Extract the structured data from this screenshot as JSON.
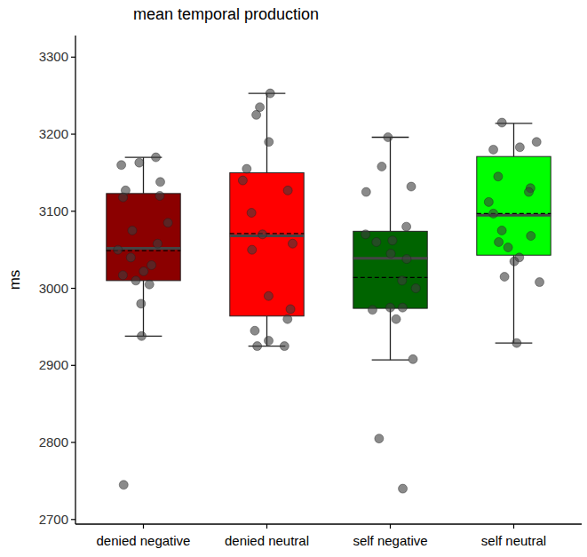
{
  "chart_data": {
    "type": "box",
    "title": "mean temporal production",
    "y_label": "ms",
    "categories": [
      "denied negative",
      "denied neutral",
      "self negative",
      "self neutral"
    ],
    "colors": [
      "#8b0000",
      "#ff0000",
      "#006400",
      "#00ff00"
    ],
    "ylim": [
      2694,
      3328
    ],
    "yticks": [
      2700,
      2800,
      2900,
      3000,
      3100,
      3200,
      3300
    ],
    "boxes": [
      {
        "whisker_low": 2938,
        "q1": 3010,
        "median": 3052,
        "q3": 3123,
        "whisker_high": 3170,
        "mean": 3049,
        "points": [
          3170,
          3160,
          3163,
          3138,
          3127,
          3120,
          3118,
          3085,
          3075,
          3058,
          3050,
          3040,
          3030,
          3022,
          3017,
          3010,
          3005,
          2980,
          2938,
          2745
        ]
      },
      {
        "whisker_low": 2925,
        "q1": 2964,
        "median": 3068,
        "q3": 3150,
        "whisker_high": 3253,
        "mean": 3071,
        "points": [
          3253,
          3235,
          3225,
          3190,
          3155,
          3140,
          3127,
          3098,
          3070,
          3058,
          3050,
          2990,
          2973,
          2960,
          2945,
          2932,
          2925,
          2925
        ]
      },
      {
        "whisker_low": 2907,
        "q1": 2974,
        "median": 3039,
        "q3": 3074,
        "whisker_high": 3196,
        "mean": 3014,
        "points": [
          3196,
          3158,
          3132,
          3125,
          3080,
          3070,
          3062,
          3060,
          3045,
          3038,
          3010,
          3000,
          2975,
          2975,
          2972,
          2960,
          2908,
          2805,
          2740
        ]
      },
      {
        "whisker_low": 2929,
        "q1": 3043,
        "median": 3095,
        "q3": 3171,
        "whisker_high": 3214,
        "mean": 3097,
        "points": [
          3215,
          3190,
          3183,
          3180,
          3145,
          3130,
          3125,
          3112,
          3097,
          3075,
          3068,
          3060,
          3053,
          3040,
          3035,
          3015,
          3008,
          2929
        ]
      }
    ]
  }
}
